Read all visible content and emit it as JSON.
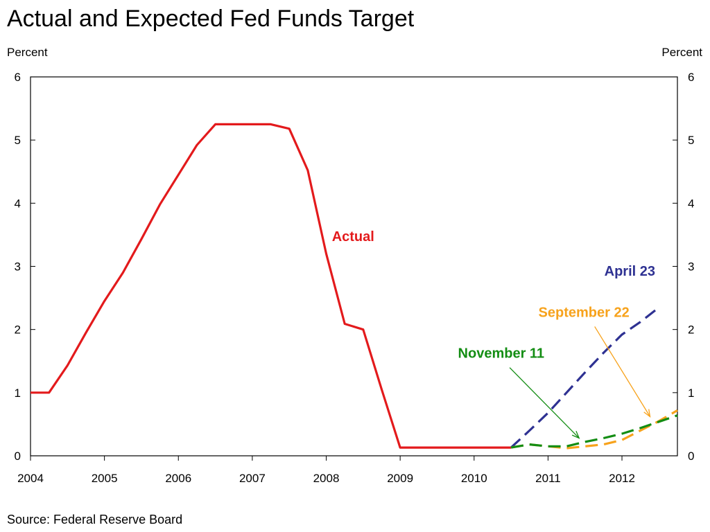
{
  "title": "Actual and Expected Fed Funds Target",
  "source": "Source: Federal Reserve Board",
  "chart_data": {
    "type": "line",
    "title": "Actual and Expected Fed Funds Target",
    "ylabel_left": "Percent",
    "ylabel_right": "Percent",
    "xlim": [
      2004.0,
      2012.75
    ],
    "ylim": [
      0,
      6
    ],
    "x_ticks": [
      2004,
      2005,
      2006,
      2007,
      2008,
      2009,
      2010,
      2011,
      2012
    ],
    "y_ticks": [
      0,
      1,
      2,
      3,
      4,
      5,
      6
    ],
    "grid": false,
    "series": [
      {
        "name": "Actual",
        "color": "#e31a1c",
        "style": "solid",
        "x": [
          2004.0,
          2004.25,
          2004.5,
          2004.75,
          2005.0,
          2005.25,
          2005.5,
          2005.75,
          2006.0,
          2006.25,
          2006.5,
          2006.75,
          2007.0,
          2007.25,
          2007.5,
          2007.75,
          2008.0,
          2008.25,
          2008.5,
          2008.75,
          2009.0,
          2009.5,
          2010.0,
          2010.5
        ],
        "y": [
          1.0,
          1.0,
          1.43,
          1.95,
          2.45,
          2.9,
          3.43,
          3.98,
          4.45,
          4.92,
          5.25,
          5.25,
          5.25,
          5.25,
          5.18,
          4.52,
          3.2,
          2.09,
          2.0,
          1.05,
          0.13,
          0.13,
          0.13,
          0.13
        ]
      },
      {
        "name": "April 23",
        "color": "#2e3192",
        "style": "dashed",
        "x": [
          2010.5,
          2010.75,
          2011.0,
          2011.25,
          2011.5,
          2011.75,
          2012.0,
          2012.25,
          2012.5
        ],
        "y": [
          0.13,
          0.4,
          0.68,
          1.0,
          1.32,
          1.63,
          1.92,
          2.12,
          2.35
        ]
      },
      {
        "name": "September 22",
        "color": "#f7a21b",
        "style": "dashed",
        "x": [
          2010.5,
          2010.75,
          2011.0,
          2011.25,
          2011.5,
          2011.75,
          2012.0,
          2012.25,
          2012.5,
          2012.75
        ],
        "y": [
          0.13,
          0.18,
          0.15,
          0.12,
          0.15,
          0.18,
          0.25,
          0.4,
          0.55,
          0.72
        ]
      },
      {
        "name": "November 11",
        "color": "#138d13",
        "style": "dashed",
        "x": [
          2010.5,
          2010.75,
          2011.0,
          2011.25,
          2011.5,
          2011.75,
          2012.0,
          2012.25,
          2012.5,
          2012.75
        ],
        "y": [
          0.13,
          0.18,
          0.15,
          0.15,
          0.22,
          0.28,
          0.35,
          0.44,
          0.54,
          0.64
        ]
      }
    ],
    "annotations": [
      {
        "text": "Actual",
        "color": "#e31a1c",
        "near_x": 2008.65,
        "near_y": 3.4
      },
      {
        "text": "April 23",
        "color": "#2e3192",
        "near_x": 2012.45,
        "near_y": 2.85
      },
      {
        "text": "September 22",
        "color": "#f7a21b",
        "near_x": 2012.1,
        "near_y": 2.2,
        "arrow_to_x": 2012.38,
        "arrow_to_y": 0.62
      },
      {
        "text": "November 11",
        "color": "#138d13",
        "near_x": 2010.95,
        "near_y": 1.55,
        "arrow_to_x": 2011.42,
        "arrow_to_y": 0.28
      }
    ]
  }
}
